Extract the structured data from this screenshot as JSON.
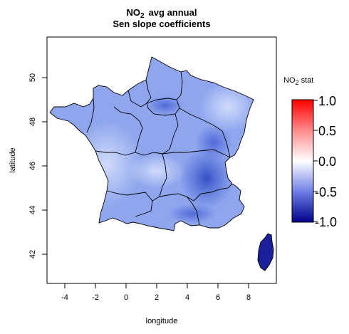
{
  "title": {
    "pollutant": "NO",
    "subscript": "2",
    "line1_rest": "avg annual",
    "line2": "Sen slope coefficients"
  },
  "axes": {
    "xlabel": "longitude",
    "ylabel": "latitude",
    "xticks": [
      "-4",
      "-2",
      "0",
      "2",
      "4",
      "6",
      "8"
    ],
    "yticks": [
      "42",
      "44",
      "46",
      "48",
      "50"
    ]
  },
  "legend": {
    "title_main": "NO",
    "title_sub": "2",
    "title_rest": " stat",
    "ticks": [
      "1.0",
      "0.5",
      "0.0",
      "-0.5",
      "-1.0"
    ],
    "colors": {
      "high": "#ff0000",
      "mid": "#ffffff",
      "low": "#00008b"
    }
  },
  "map": {
    "land_base": "#8fa6ee",
    "land_dark": "#3f5ecf",
    "land_light": "#c7d3fa",
    "border_color": "#000000"
  }
}
